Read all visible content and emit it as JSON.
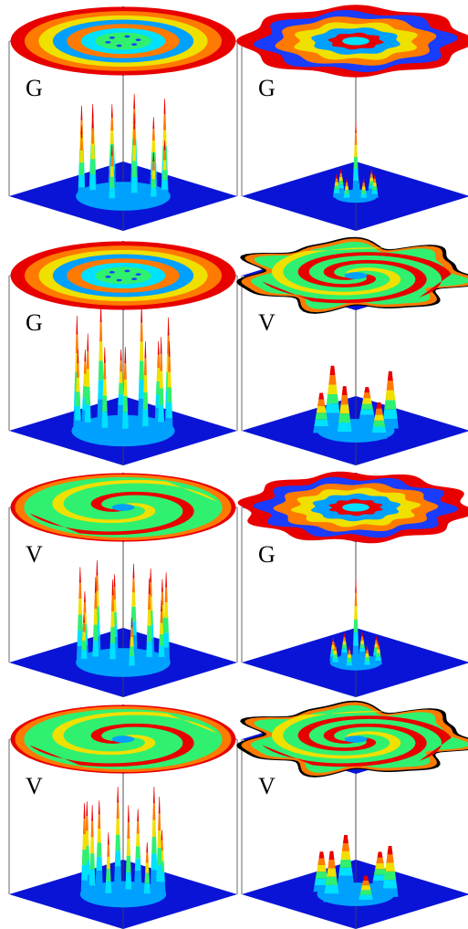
{
  "colors": {
    "background": "#ffffff",
    "plane": "#0a14d6",
    "frame": "#444444",
    "ramp": [
      "#1a3cff",
      "#00a0ff",
      "#00e0ff",
      "#30f070",
      "#f0e000",
      "#ff7a00",
      "#e80000"
    ]
  },
  "panels": [
    {
      "label": "G",
      "top": {
        "pattern": "rings",
        "rings": 7,
        "dots": 6
      },
      "bottom": {
        "kind": "spikes",
        "count": 12,
        "ring": 0.55,
        "height": 0.75
      }
    },
    {
      "label": "G",
      "top": {
        "pattern": "flower",
        "rings": 6,
        "petals": 8
      },
      "bottom": {
        "kind": "single-spike",
        "count": 7,
        "ring": 0.25,
        "height": 0.9
      }
    },
    {
      "label": "G",
      "top": {
        "pattern": "rings",
        "rings": 7,
        "dots": 6
      },
      "bottom": {
        "kind": "spikes",
        "count": 14,
        "ring": 0.6,
        "height": 0.9
      }
    },
    {
      "label": "V",
      "top": {
        "pattern": "spiral-blob",
        "arms": 3
      },
      "bottom": {
        "kind": "humps",
        "count": 6,
        "ring": 0.45,
        "height": 0.45
      }
    },
    {
      "label": "V",
      "top": {
        "pattern": "spiral",
        "arms": 2
      },
      "bottom": {
        "kind": "spikes",
        "count": 14,
        "ring": 0.55,
        "height": 0.75
      }
    },
    {
      "label": "G",
      "top": {
        "pattern": "flower",
        "rings": 6,
        "petals": 10
      },
      "bottom": {
        "kind": "single-spike",
        "count": 8,
        "ring": 0.3,
        "height": 1.0
      }
    },
    {
      "label": "V",
      "top": {
        "pattern": "spiral",
        "arms": 2
      },
      "bottom": {
        "kind": "spikes",
        "count": 12,
        "ring": 0.5,
        "height": 0.8
      }
    },
    {
      "label": "V",
      "top": {
        "pattern": "star-blob",
        "arms": 3
      },
      "bottom": {
        "kind": "humps",
        "count": 6,
        "ring": 0.45,
        "height": 0.4
      }
    }
  ]
}
